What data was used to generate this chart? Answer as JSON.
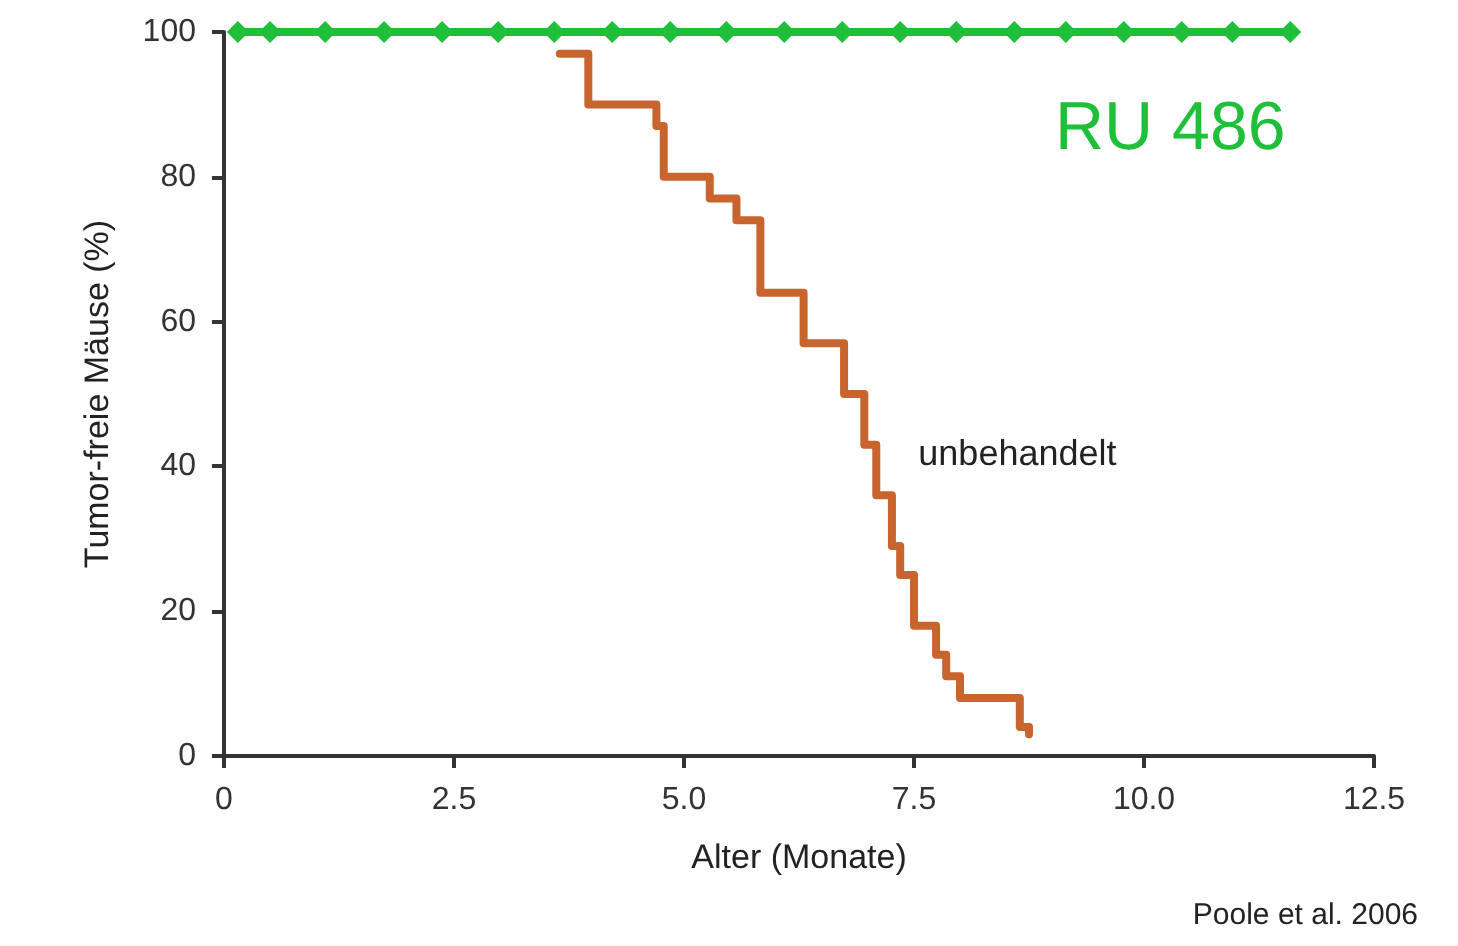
{
  "chart_data": {
    "type": "line",
    "xlabel": "Alter (Monate)",
    "ylabel": "Tumor-freie Mäuse (%)",
    "xlim": [
      0,
      12.5
    ],
    "xticks": [
      0,
      2.5,
      {
        "value": 5,
        "label": "5.0"
      },
      7.5,
      {
        "value": 10,
        "label": "10.0"
      },
      12.5
    ],
    "ylim": [
      0,
      100
    ],
    "yticks": [
      0,
      20,
      40,
      60,
      80,
      100
    ],
    "grid": false,
    "legend": false,
    "annotations": [
      "Poole et al. 2006"
    ],
    "series": [
      {
        "name": "RU 486",
        "type": "line",
        "color": "#1fbf3a",
        "marker": "diamond",
        "x": [
          0.15,
          0.5,
          1.1,
          1.74,
          2.37,
          2.98,
          3.59,
          4.22,
          4.85,
          5.46,
          6.09,
          6.72,
          7.35,
          7.96,
          8.59,
          9.15,
          9.78,
          10.41,
          10.96,
          11.59
        ],
        "values": [
          100,
          100,
          100,
          100,
          100,
          100,
          100,
          100,
          100,
          100,
          100,
          100,
          100,
          100,
          100,
          100,
          100,
          100,
          100,
          100
        ]
      },
      {
        "name": "unbehandelt",
        "type": "step",
        "color": "#c8642e",
        "marker": "none",
        "x": [
          3.65,
          3.96,
          4.7,
          4.78,
          5.28,
          5.57,
          5.83,
          6.3,
          6.74,
          6.96,
          7.09,
          7.26,
          7.35,
          7.5,
          7.74,
          7.85,
          8.0,
          8.65,
          8.75
        ],
        "values": [
          97,
          90,
          87,
          80,
          77,
          74,
          64,
          57,
          50,
          43,
          36,
          29,
          25,
          18,
          14,
          11,
          8,
          4,
          3
        ]
      }
    ]
  }
}
